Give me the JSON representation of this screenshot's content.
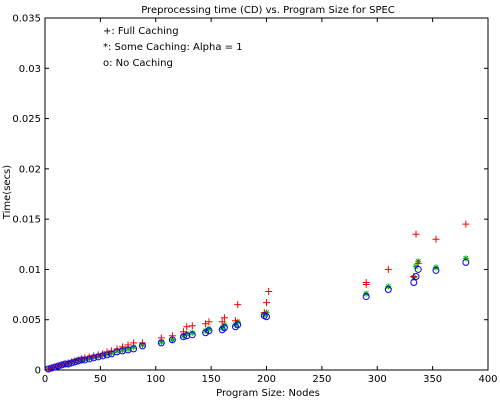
{
  "chart_data": {
    "type": "scatter",
    "title": "Preprocessing time (CD) vs. Program Size for SPEC",
    "xlabel": "Program Size: Nodes",
    "ylabel": "Time(secs)",
    "xlim": [
      0,
      400
    ],
    "ylim": [
      0,
      0.035
    ],
    "x_ticks": [
      0,
      50,
      100,
      150,
      200,
      250,
      300,
      350,
      400
    ],
    "y_ticks": [
      0,
      0.005,
      0.01,
      0.015,
      0.02,
      0.025,
      0.03,
      0.035
    ],
    "x_tick_labels": [
      "0",
      "50",
      "100",
      "150",
      "200",
      "250",
      "300",
      "350",
      "400"
    ],
    "y_tick_labels": [
      "0",
      "0.005",
      "0.01",
      "0.015",
      "0.02",
      "0.025",
      "0.03",
      "0.035"
    ],
    "grid": false,
    "legend_placement": "top-left",
    "legend": [
      "+: Full Caching",
      "*: Some Caching: Alpha = 1",
      "o: No Caching"
    ],
    "series": [
      {
        "marker": "plus",
        "color": "#ff0000",
        "points": [
          [
            3,
            0.0001
          ],
          [
            6,
            0.0002
          ],
          [
            9,
            0.0003
          ],
          [
            12,
            0.0004
          ],
          [
            15,
            0.0005
          ],
          [
            18,
            0.0006
          ],
          [
            21,
            0.0007
          ],
          [
            24,
            0.0008
          ],
          [
            27,
            0.0009
          ],
          [
            30,
            0.001
          ],
          [
            33,
            0.0011
          ],
          [
            36,
            0.0012
          ],
          [
            40,
            0.0013
          ],
          [
            44,
            0.0014
          ],
          [
            48,
            0.0015
          ],
          [
            52,
            0.0016
          ],
          [
            56,
            0.0018
          ],
          [
            60,
            0.0019
          ],
          [
            65,
            0.0021
          ],
          [
            70,
            0.0023
          ],
          [
            75,
            0.0025
          ],
          [
            80,
            0.0027
          ],
          [
            88,
            0.0027
          ],
          [
            105,
            0.0032
          ],
          [
            115,
            0.0034
          ],
          [
            125,
            0.0038
          ],
          [
            128,
            0.0043
          ],
          [
            133,
            0.0044
          ],
          [
            145,
            0.0046
          ],
          [
            148,
            0.0048
          ],
          [
            160,
            0.0048
          ],
          [
            162,
            0.0052
          ],
          [
            172,
            0.0049
          ],
          [
            174,
            0.0065
          ],
          [
            198,
            0.0057
          ],
          [
            200,
            0.0067
          ],
          [
            202,
            0.0078
          ],
          [
            290,
            0.0085
          ],
          [
            290,
            0.0087
          ],
          [
            310,
            0.01
          ],
          [
            333,
            0.0093
          ],
          [
            335,
            0.0135
          ],
          [
            337,
            0.0106
          ],
          [
            353,
            0.013
          ],
          [
            380,
            0.0145
          ]
        ]
      },
      {
        "marker": "star",
        "color": "#00b000",
        "points": [
          [
            3,
            0.0001
          ],
          [
            6,
            0.0002
          ],
          [
            9,
            0.0003
          ],
          [
            12,
            0.0004
          ],
          [
            15,
            0.0005
          ],
          [
            18,
            0.0006
          ],
          [
            21,
            0.0007
          ],
          [
            24,
            0.0008
          ],
          [
            27,
            0.0009
          ],
          [
            30,
            0.001
          ],
          [
            33,
            0.001
          ],
          [
            36,
            0.0011
          ],
          [
            40,
            0.0012
          ],
          [
            44,
            0.0013
          ],
          [
            48,
            0.0014
          ],
          [
            52,
            0.0015
          ],
          [
            56,
            0.0016
          ],
          [
            60,
            0.0017
          ],
          [
            65,
            0.0019
          ],
          [
            70,
            0.002
          ],
          [
            75,
            0.0021
          ],
          [
            80,
            0.0023
          ],
          [
            88,
            0.0025
          ],
          [
            105,
            0.0028
          ],
          [
            115,
            0.003
          ],
          [
            125,
            0.0034
          ],
          [
            128,
            0.0036
          ],
          [
            133,
            0.0037
          ],
          [
            145,
            0.0039
          ],
          [
            148,
            0.0041
          ],
          [
            160,
            0.0042
          ],
          [
            162,
            0.0045
          ],
          [
            172,
            0.0045
          ],
          [
            174,
            0.0048
          ],
          [
            198,
            0.0055
          ],
          [
            200,
            0.0057
          ],
          [
            290,
            0.0076
          ],
          [
            310,
            0.0083
          ],
          [
            333,
            0.0092
          ],
          [
            335,
            0.0103
          ],
          [
            337,
            0.0108
          ],
          [
            353,
            0.0102
          ],
          [
            380,
            0.0111
          ]
        ]
      },
      {
        "marker": "circle",
        "color": "#0000ff",
        "points": [
          [
            3,
            0.0001
          ],
          [
            6,
            0.0002
          ],
          [
            9,
            0.0003
          ],
          [
            12,
            0.0004
          ],
          [
            15,
            0.0005
          ],
          [
            18,
            0.0006
          ],
          [
            21,
            0.0006
          ],
          [
            24,
            0.0007
          ],
          [
            27,
            0.0008
          ],
          [
            30,
            0.0009
          ],
          [
            33,
            0.001
          ],
          [
            36,
            0.001
          ],
          [
            40,
            0.0011
          ],
          [
            44,
            0.0012
          ],
          [
            48,
            0.0013
          ],
          [
            52,
            0.0014
          ],
          [
            56,
            0.0015
          ],
          [
            60,
            0.0016
          ],
          [
            65,
            0.0018
          ],
          [
            70,
            0.0019
          ],
          [
            75,
            0.002
          ],
          [
            80,
            0.0021
          ],
          [
            88,
            0.0024
          ],
          [
            105,
            0.0027
          ],
          [
            115,
            0.003
          ],
          [
            125,
            0.0033
          ],
          [
            128,
            0.0034
          ],
          [
            133,
            0.0035
          ],
          [
            145,
            0.0037
          ],
          [
            148,
            0.0039
          ],
          [
            160,
            0.004
          ],
          [
            162,
            0.0042
          ],
          [
            172,
            0.0043
          ],
          [
            174,
            0.0045
          ],
          [
            198,
            0.0054
          ],
          [
            200,
            0.0053
          ],
          [
            290,
            0.0073
          ],
          [
            310,
            0.008
          ],
          [
            333,
            0.0087
          ],
          [
            335,
            0.0093
          ],
          [
            337,
            0.01
          ],
          [
            353,
            0.0099
          ],
          [
            380,
            0.0107
          ]
        ]
      }
    ]
  }
}
